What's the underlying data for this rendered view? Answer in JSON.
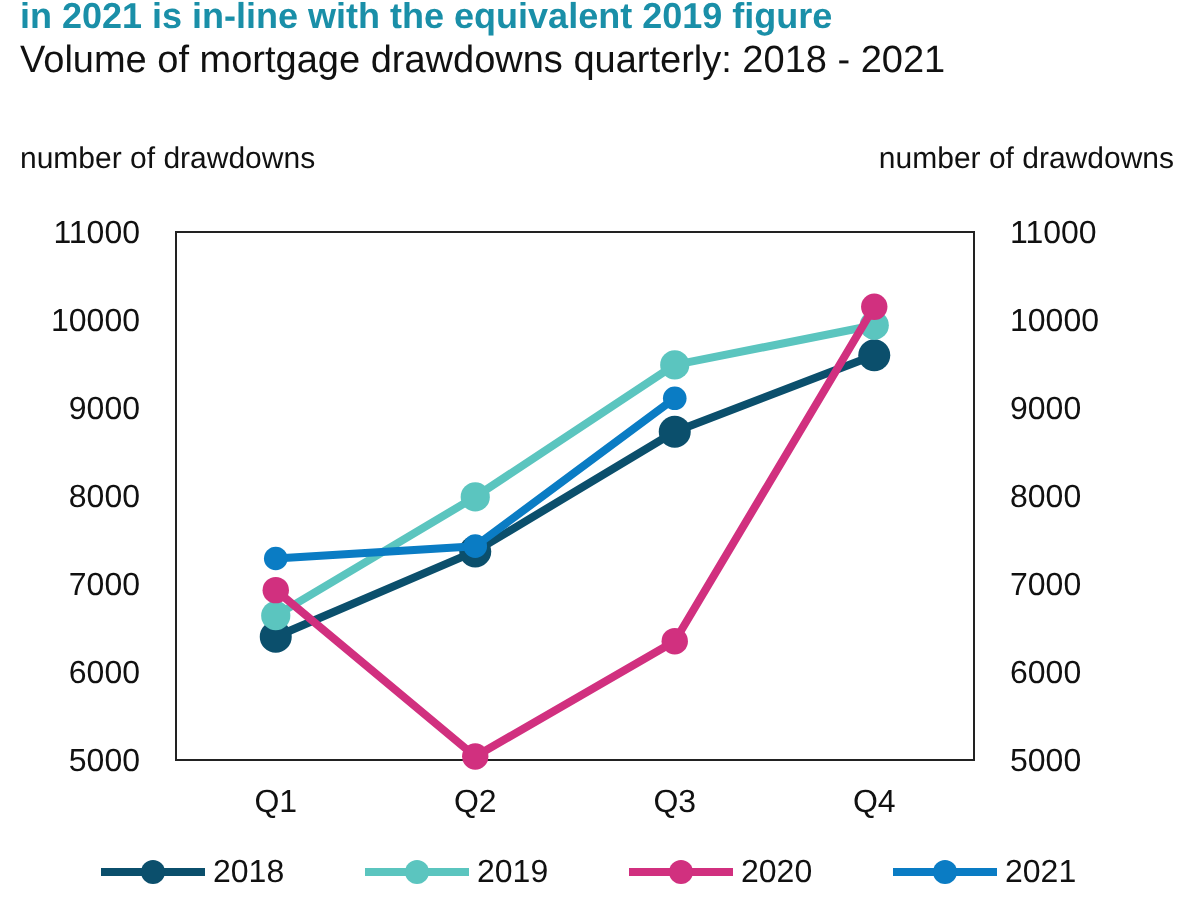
{
  "chart_data": {
    "type": "line",
    "title": "in 2021 is in-line with the equivalent 2019 figure",
    "subtitle": "Volume of mortgage drawdowns quarterly: 2018 - 2021",
    "ylabel": "number of drawdowns",
    "y2label": "number of drawdowns",
    "categories": [
      "Q1",
      "Q2",
      "Q3",
      "Q4"
    ],
    "series": [
      {
        "name": "2018",
        "color": "#0b4f6c",
        "values": [
          6400,
          7370,
          8730,
          9600
        ]
      },
      {
        "name": "2019",
        "color": "#5bc5bf",
        "values": [
          6640,
          7990,
          9490,
          9940
        ]
      },
      {
        "name": "2020",
        "color": "#d1307f",
        "values": [
          6930,
          5040,
          6350,
          10150
        ]
      },
      {
        "name": "2021",
        "color": "#0a7cc4",
        "values": [
          7290,
          7430,
          9110,
          null
        ]
      }
    ],
    "ylim": [
      5000,
      11000
    ],
    "yticks": [
      5000,
      6000,
      7000,
      8000,
      9000,
      10000,
      11000
    ],
    "y2lim": [
      5000,
      11000
    ],
    "y2ticks": [
      5000,
      6000,
      7000,
      8000,
      9000,
      10000,
      11000
    ],
    "marker": "circle",
    "legend": "bottom",
    "grid": false
  }
}
